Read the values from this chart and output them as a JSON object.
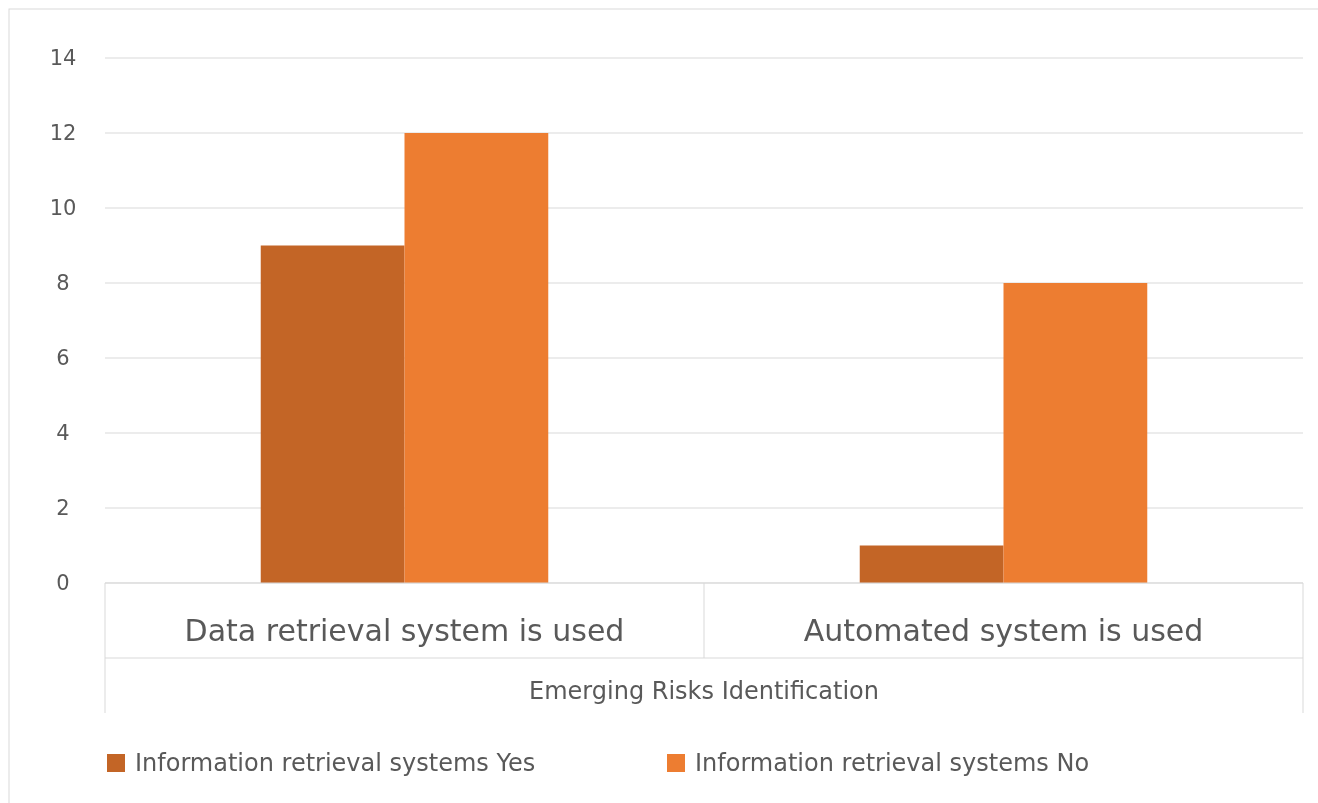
{
  "chart_data": {
    "type": "bar",
    "xlabel": "Emerging Risks Identification",
    "categories": [
      "Data retrieval system is used",
      "Automated system is used"
    ],
    "series": [
      {
        "name": "Information retrieval systems Yes",
        "color": "#c36526",
        "values": [
          9,
          1
        ]
      },
      {
        "name": "Information retrieval systems No",
        "color": "#ed7d31",
        "values": [
          12,
          8
        ]
      }
    ],
    "ylim": [
      0,
      14
    ],
    "yticks": [
      0,
      2,
      4,
      6,
      8,
      10,
      12,
      14
    ],
    "grid": "y",
    "legend": "bottom"
  }
}
